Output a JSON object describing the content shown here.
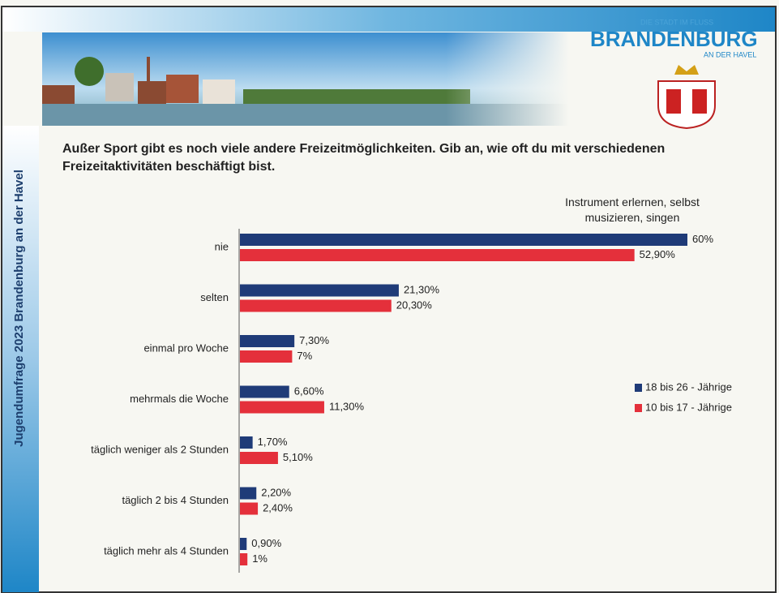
{
  "header": {
    "side_text": "Jugendumfrage 2023 Brandenburg an der Havel",
    "logo_tagline": "DIE STADT IM FLUSS",
    "logo_name": "BRANDENBURG",
    "logo_sub": "AN DER HAVEL"
  },
  "chart_data": {
    "type": "bar",
    "orientation": "horizontal",
    "title": "Außer Sport gibt es noch viele andere Freizeitmöglichkeiten. Gib an, wie oft du mit verschiedenen Freizeitaktivitäten beschäftigt bist.",
    "subtitle": "Instrument erlernen, selbst musizieren, singen",
    "categories": [
      "nie",
      "selten",
      "einmal pro Woche",
      "mehrmals die Woche",
      "täglich weniger als 2 Stunden",
      "täglich 2 bis 4 Stunden",
      "täglich mehr als 4 Stunden"
    ],
    "series": [
      {
        "name": "18 bis 26 - Jährige",
        "color": "#1f3b78",
        "values": [
          60,
          21.3,
          7.3,
          6.6,
          1.7,
          2.2,
          0.9
        ],
        "value_labels": [
          "60%",
          "21,30%",
          "7,30%",
          "6,60%",
          "1,70%",
          "2,20%",
          "0,90%"
        ]
      },
      {
        "name": "10 bis 17 - Jährige",
        "color": "#e4303b",
        "values": [
          52.9,
          20.3,
          7,
          11.3,
          5.1,
          2.4,
          1
        ],
        "value_labels": [
          "52,90%",
          "20,30%",
          "7%",
          "11,30%",
          "5,10%",
          "2,40%",
          "1%"
        ]
      }
    ]
  }
}
